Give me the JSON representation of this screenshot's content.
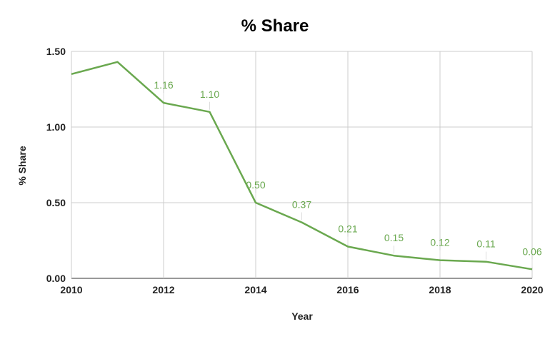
{
  "chart_data": {
    "type": "line",
    "title": "% Share",
    "xlabel": "Year",
    "ylabel": "% Share",
    "xlim": [
      2010,
      2020
    ],
    "ylim": [
      0,
      1.5
    ],
    "x_ticks": [
      "2010",
      "2012",
      "2014",
      "2016",
      "2018",
      "2020"
    ],
    "y_ticks": [
      "0.00",
      "0.50",
      "1.00",
      "1.50"
    ],
    "grid": true,
    "legend": "none",
    "color": "#6aa84f",
    "series": [
      {
        "x": [
          2010,
          2011,
          2012,
          2013,
          2014,
          2015,
          2016,
          2017,
          2018,
          2019,
          2020
        ],
        "values": [
          1.35,
          1.43,
          1.16,
          1.1,
          0.5,
          0.37,
          0.21,
          0.15,
          0.12,
          0.11,
          0.06
        ],
        "labels": [
          "",
          "",
          "1.16",
          "1.10",
          "0.50",
          "0.37",
          "0.21",
          "0.15",
          "0.12",
          "0.11",
          "0.06"
        ]
      }
    ]
  }
}
